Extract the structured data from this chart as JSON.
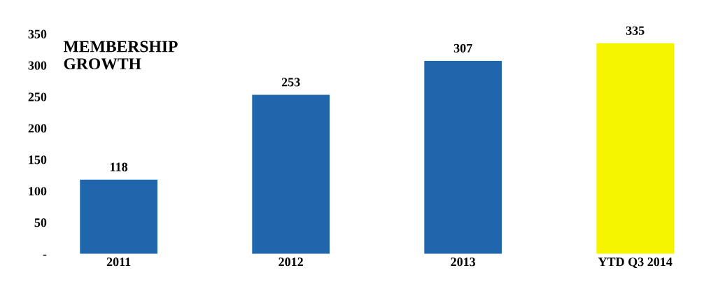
{
  "chart_data": {
    "type": "bar",
    "title": "MEMBERSHIP\nGROWTH",
    "categories": [
      "2011",
      "2012",
      "2013",
      "YTD Q3 2014"
    ],
    "values": [
      118,
      253,
      307,
      335
    ],
    "colors": [
      "#1f66ad",
      "#1f66ad",
      "#1f66ad",
      "#f5f500"
    ],
    "ylim": [
      0,
      350
    ],
    "yticks": [
      {
        "value": 0,
        "label": "-"
      },
      50,
      100,
      150,
      200,
      250,
      300,
      350
    ],
    "data_labels": true,
    "grid": false,
    "legend": false
  }
}
